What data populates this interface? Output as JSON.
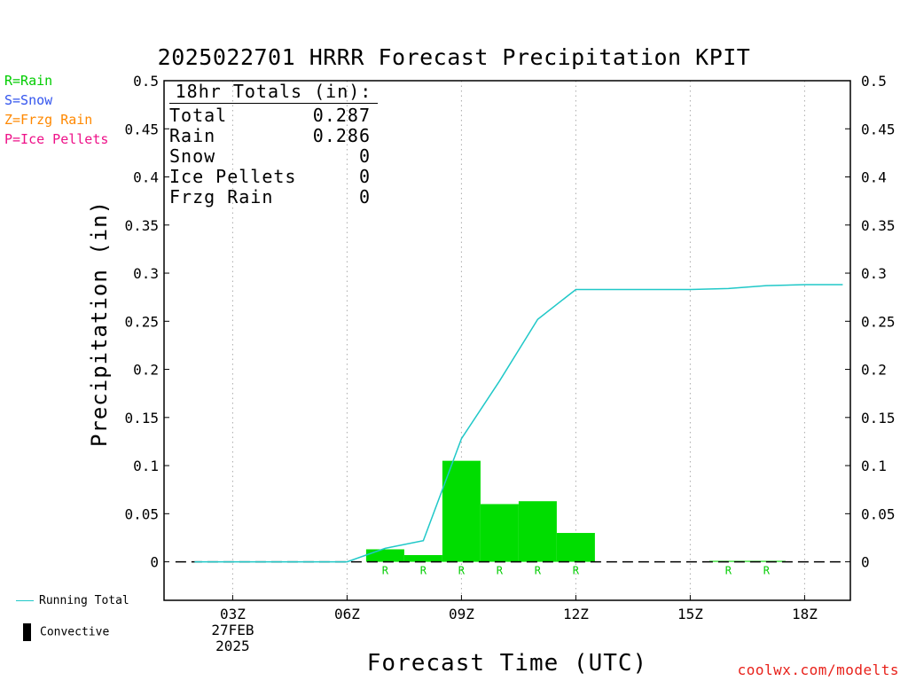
{
  "title": "2025022701 HRRR Forecast Precipitation KPIT",
  "precip_type_legend": [
    {
      "label": "R=Rain",
      "color": "#00cc00"
    },
    {
      "label": "S=Snow",
      "color": "#3355ee"
    },
    {
      "label": "Z=Frzg Rain",
      "color": "#ff8800"
    },
    {
      "label": "P=Ice Pellets",
      "color": "#ee1188"
    }
  ],
  "totals": {
    "heading": "18hr Totals (in):",
    "rows": [
      {
        "label": "Total",
        "value": "0.287"
      },
      {
        "label": "Rain",
        "value": "0.286"
      },
      {
        "label": "Snow",
        "value": "0"
      },
      {
        "label": "Ice Pellets",
        "value": "0"
      },
      {
        "label": "Frzg Rain",
        "value": "0"
      }
    ]
  },
  "bottom_legend": {
    "running_total": "Running Total",
    "convective": "Convective"
  },
  "credit": "coolwx.com/modelts",
  "colors": {
    "bars": "#00dd00",
    "running_total": "#20c8c8",
    "rain_marker": "#00cc00",
    "zero_line": "#000000",
    "grid": "#aaaaaa"
  },
  "chart_data": {
    "type": "bar",
    "xlabel": "Forecast Time (UTC)",
    "ylabel": "Precipitation (in)",
    "xlim": [
      1.2,
      19.2
    ],
    "ylim": [
      -0.04,
      0.5
    ],
    "yticks": [
      0,
      0.05,
      0.1,
      0.15,
      0.2,
      0.25,
      0.3,
      0.35,
      0.4,
      0.45,
      0.5
    ],
    "ytick_labels": [
      "0",
      "0.05",
      "0.1",
      "0.15",
      "0.2",
      "0.25",
      "0.3",
      "0.35",
      "0.4",
      "0.45",
      "0.5"
    ],
    "xticks": [
      {
        "x": 3,
        "lines": [
          "03Z",
          "27FEB",
          "2025"
        ]
      },
      {
        "x": 6,
        "lines": [
          "06Z"
        ]
      },
      {
        "x": 9,
        "lines": [
          "09Z"
        ]
      },
      {
        "x": 12,
        "lines": [
          "12Z"
        ]
      },
      {
        "x": 15,
        "lines": [
          "15Z"
        ]
      },
      {
        "x": 18,
        "lines": [
          "18Z"
        ]
      }
    ],
    "hours": [
      2,
      3,
      4,
      5,
      6,
      7,
      8,
      9,
      10,
      11,
      12,
      13,
      14,
      15,
      16,
      17,
      18,
      19
    ],
    "series": [
      {
        "name": "Hourly",
        "values": [
          0,
          0,
          0,
          0,
          0,
          0.013,
          0.007,
          0.105,
          0.06,
          0.063,
          0.03,
          0,
          0,
          0,
          0.001,
          0.001,
          0,
          0
        ]
      },
      {
        "name": "Running Total",
        "values": [
          0,
          0,
          0,
          0,
          0,
          0.014,
          0.022,
          0.128,
          0.188,
          0.252,
          0.283,
          0.283,
          0.283,
          0.283,
          0.284,
          0.287,
          0.288,
          0.288
        ]
      }
    ],
    "type_markers": [
      {
        "x": 7,
        "label": "R"
      },
      {
        "x": 8,
        "label": "R"
      },
      {
        "x": 9,
        "label": "R"
      },
      {
        "x": 10,
        "label": "R"
      },
      {
        "x": 11,
        "label": "R"
      },
      {
        "x": 12,
        "label": "R"
      },
      {
        "x": 16,
        "label": "R"
      },
      {
        "x": 17,
        "label": "R"
      }
    ]
  }
}
